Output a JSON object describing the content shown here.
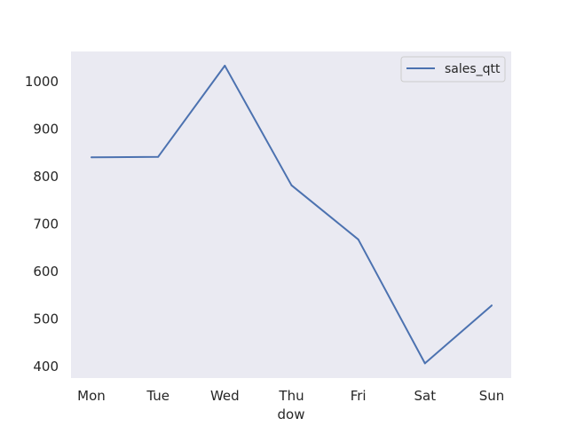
{
  "chart_data": {
    "type": "line",
    "categories": [
      "Mon",
      "Tue",
      "Wed",
      "Thu",
      "Fri",
      "Sat",
      "Sun"
    ],
    "series": [
      {
        "name": "sales_qtt",
        "values": [
          841,
          842,
          1034,
          782,
          668,
          407,
          529
        ],
        "color": "#4c72b0"
      }
    ],
    "title": "",
    "xlabel": "dow",
    "ylabel": "",
    "ylim": [
      376,
      1064
    ],
    "yticks": [
      400,
      500,
      600,
      700,
      800,
      900,
      1000
    ],
    "grid": false,
    "legend_position": "top-right",
    "colors": {
      "plot_background": "#eaeaf2",
      "page_background": "#ffffff",
      "text": "#262626"
    }
  }
}
